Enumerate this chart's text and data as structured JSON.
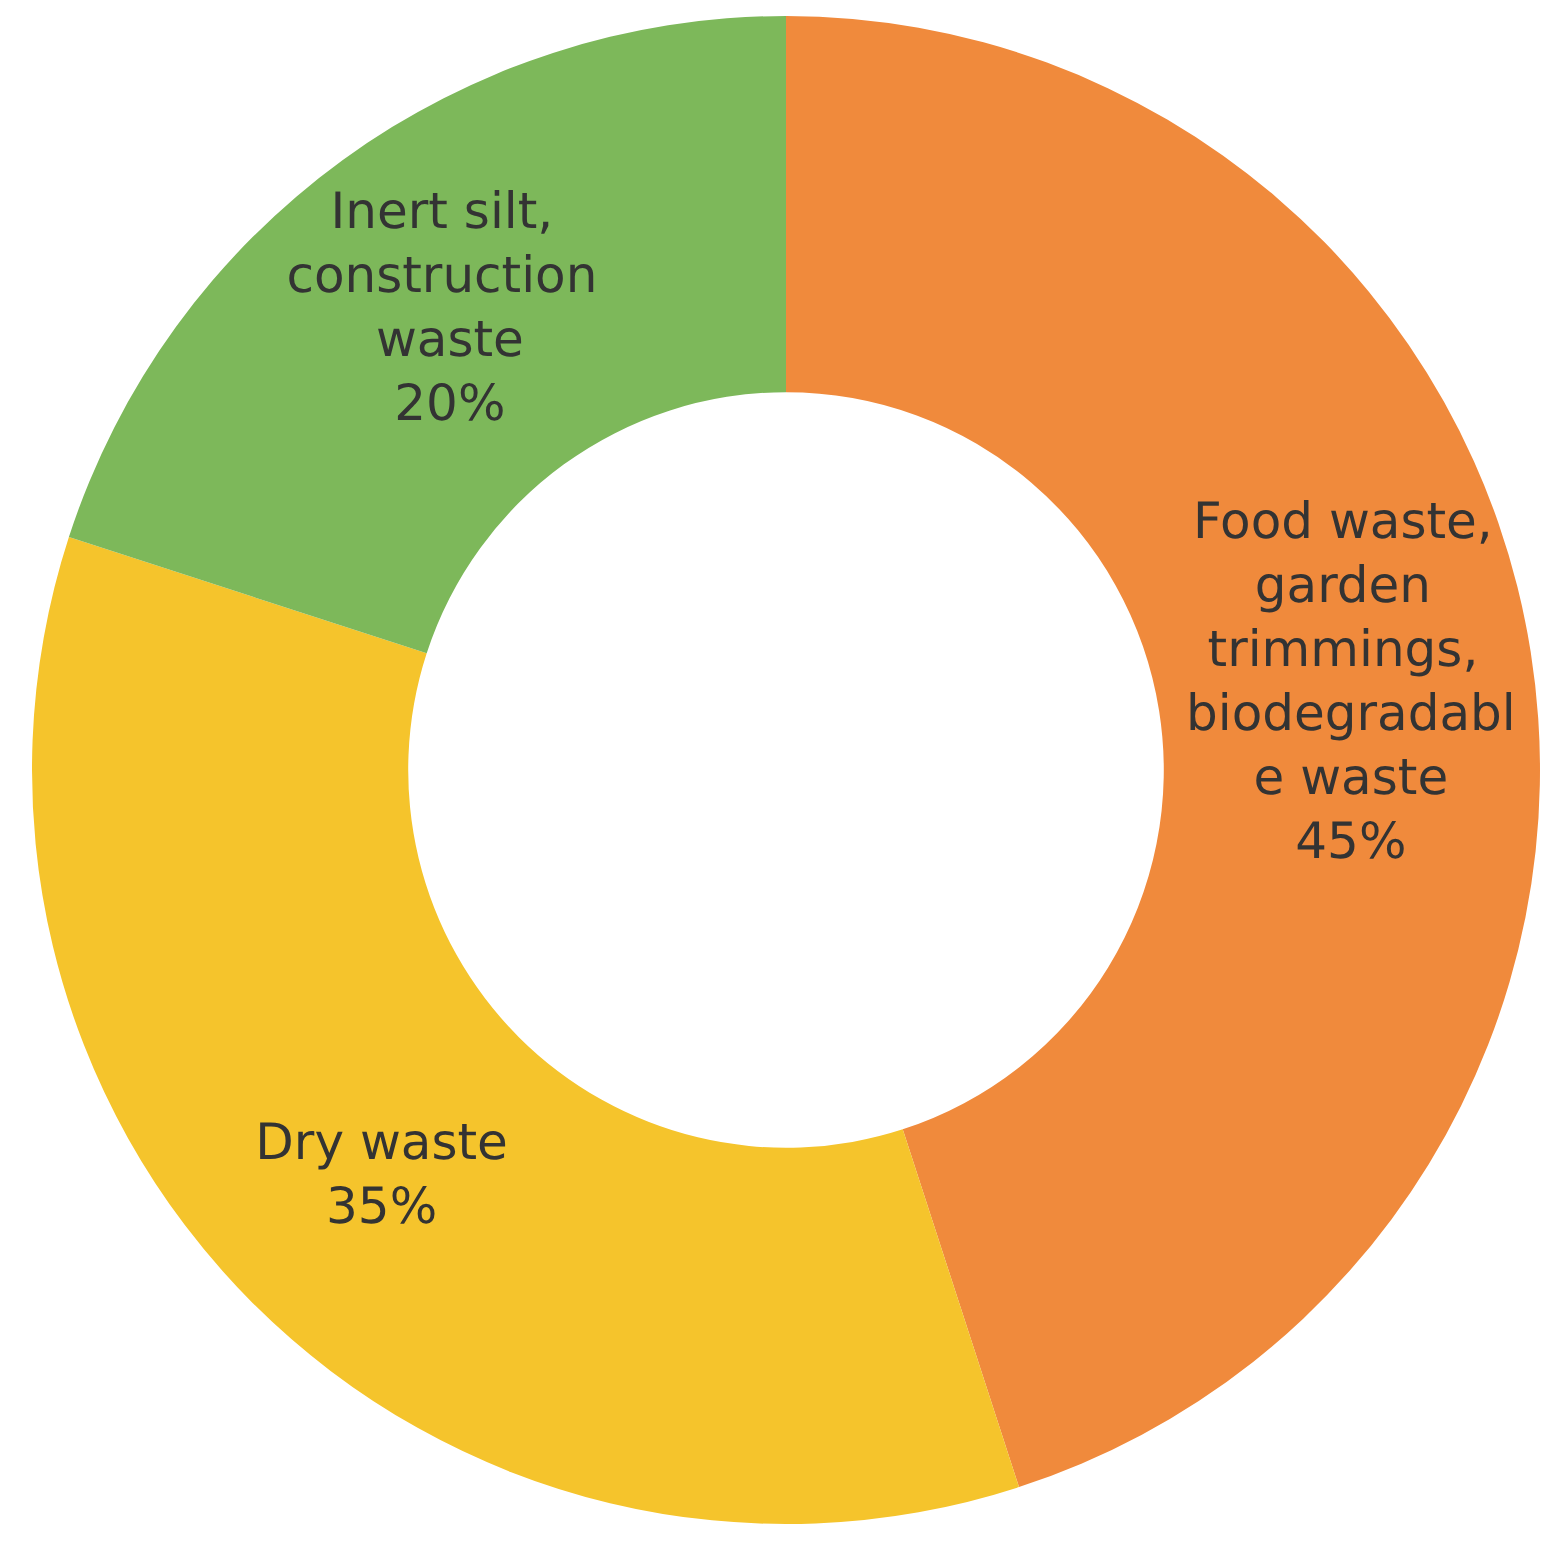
{
  "chart_data": {
    "type": "donut",
    "categories": [
      "Food waste, garden trimmings, biodegradable waste",
      "Dry waste",
      "Inert silt, construction waste"
    ],
    "values": [
      45,
      35,
      20
    ],
    "colors": [
      "#f08a3c",
      "#f5c42c",
      "#7db85a"
    ],
    "value_labels": [
      "45%",
      "35%",
      "20%"
    ]
  }
}
